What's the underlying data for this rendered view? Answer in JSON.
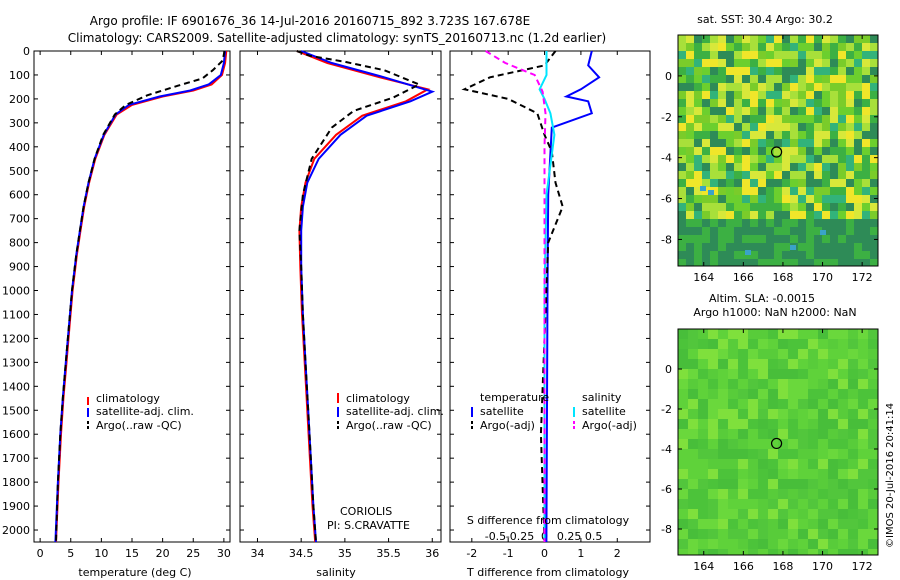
{
  "title_line1": "Argo profile: IF 6901676_36 14-Jul-2016 20160715_892 3.723S 167.678E",
  "title_line2": "Climatology: CARS2009. Satellite-adjusted climatology: synTS_20160713.nc (1.2d earlier)",
  "chart_data": [
    {
      "type": "line",
      "name": "temperature-profile",
      "xlabel": "temperature (deg C)",
      "xlim": [
        -1,
        31
      ],
      "xticks": [
        "0",
        "5",
        "10",
        "15",
        "20",
        "25",
        "30"
      ],
      "ylim": [
        0,
        2050
      ],
      "yticks": [
        "0",
        "100",
        "200",
        "300",
        "400",
        "500",
        "600",
        "700",
        "800",
        "900",
        "1000",
        "1100",
        "1200",
        "1300",
        "1400",
        "1500",
        "1600",
        "1700",
        "1800",
        "1900",
        "2000"
      ],
      "legend": [
        "climatology",
        "satellite-adj. clim.",
        "Argo(..raw -QC)"
      ],
      "series": [
        {
          "name": "climatology",
          "color": "#ff0000",
          "dash": "",
          "points": [
            [
              30.4,
              0
            ],
            [
              30.2,
              50
            ],
            [
              29.7,
              100
            ],
            [
              28.0,
              140
            ],
            [
              25.0,
              165
            ],
            [
              20.0,
              190
            ],
            [
              15.0,
              225
            ],
            [
              12.5,
              265
            ],
            [
              10.5,
              350
            ],
            [
              9.0,
              450
            ],
            [
              8.0,
              550
            ],
            [
              7.2,
              650
            ],
            [
              6.6,
              750
            ],
            [
              6.0,
              850
            ],
            [
              5.3,
              1000
            ],
            [
              4.8,
              1150
            ],
            [
              4.3,
              1300
            ],
            [
              3.8,
              1450
            ],
            [
              3.4,
              1600
            ],
            [
              3.0,
              1800
            ],
            [
              2.6,
              2050
            ]
          ]
        },
        {
          "name": "satellite-adj. clim.",
          "color": "#0000ff",
          "dash": "",
          "points": [
            [
              30.2,
              0
            ],
            [
              30.0,
              50
            ],
            [
              29.5,
              100
            ],
            [
              27.5,
              140
            ],
            [
              24.5,
              165
            ],
            [
              19.5,
              190
            ],
            [
              14.5,
              225
            ],
            [
              12.3,
              265
            ],
            [
              10.4,
              350
            ],
            [
              8.9,
              450
            ],
            [
              7.9,
              550
            ],
            [
              7.1,
              650
            ],
            [
              6.5,
              750
            ],
            [
              5.9,
              850
            ],
            [
              5.2,
              1000
            ],
            [
              4.7,
              1150
            ],
            [
              4.2,
              1300
            ],
            [
              3.7,
              1450
            ],
            [
              3.3,
              1600
            ],
            [
              2.9,
              1800
            ],
            [
              2.5,
              2050
            ]
          ]
        },
        {
          "name": "Argo(..raw -QC)",
          "color": "#000000",
          "dash": "6,4",
          "points": [
            [
              30.1,
              0
            ],
            [
              29.8,
              40
            ],
            [
              28.2,
              80
            ],
            [
              26.5,
              115
            ],
            [
              22.5,
              145
            ],
            [
              17.5,
              185
            ],
            [
              14.0,
              225
            ],
            [
              12.2,
              265
            ],
            [
              10.3,
              350
            ],
            [
              8.9,
              450
            ],
            [
              7.9,
              550
            ],
            [
              7.1,
              650
            ],
            [
              6.5,
              750
            ],
            [
              5.9,
              850
            ],
            [
              5.2,
              1000
            ],
            [
              4.7,
              1150
            ],
            [
              4.2,
              1300
            ],
            [
              3.7,
              1450
            ],
            [
              3.3,
              1600
            ],
            [
              2.9,
              1800
            ],
            [
              2.6,
              2050
            ]
          ]
        }
      ]
    },
    {
      "type": "line",
      "name": "salinity-profile",
      "xlabel": "salinity",
      "xlim": [
        33.8,
        36.1
      ],
      "xticks": [
        "34",
        "34.5",
        "35",
        "35.5",
        "36"
      ],
      "ylim": [
        0,
        2050
      ],
      "legend": [
        "climatology",
        "satellite-adj. clim.",
        "Argo(..raw -QC)"
      ],
      "annotation": [
        "CORIOLIS",
        "PI: S.CRAVATTE"
      ],
      "series": [
        {
          "name": "climatology",
          "color": "#ff0000",
          "dash": "",
          "points": [
            [
              34.45,
              0
            ],
            [
              34.8,
              50
            ],
            [
              35.4,
              110
            ],
            [
              35.95,
              160
            ],
            [
              35.7,
              210
            ],
            [
              35.2,
              270
            ],
            [
              34.9,
              350
            ],
            [
              34.65,
              450
            ],
            [
              34.55,
              550
            ],
            [
              34.5,
              650
            ],
            [
              34.48,
              750
            ],
            [
              34.49,
              900
            ],
            [
              34.51,
              1100
            ],
            [
              34.54,
              1300
            ],
            [
              34.57,
              1500
            ],
            [
              34.6,
              1700
            ],
            [
              34.63,
              1900
            ],
            [
              34.66,
              2050
            ]
          ]
        },
        {
          "name": "satellite-adj. clim.",
          "color": "#0000ff",
          "dash": "",
          "points": [
            [
              34.5,
              0
            ],
            [
              34.85,
              50
            ],
            [
              35.45,
              110
            ],
            [
              36.0,
              170
            ],
            [
              35.75,
              210
            ],
            [
              35.25,
              270
            ],
            [
              34.95,
              350
            ],
            [
              34.7,
              450
            ],
            [
              34.57,
              550
            ],
            [
              34.52,
              650
            ],
            [
              34.5,
              750
            ],
            [
              34.5,
              900
            ],
            [
              34.52,
              1100
            ],
            [
              34.55,
              1300
            ],
            [
              34.58,
              1500
            ],
            [
              34.61,
              1700
            ],
            [
              34.64,
              1900
            ],
            [
              34.67,
              2050
            ]
          ]
        },
        {
          "name": "Argo(..raw -QC)",
          "color": "#000000",
          "dash": "6,4",
          "points": [
            [
              34.45,
              0
            ],
            [
              34.6,
              20
            ],
            [
              35.0,
              45
            ],
            [
              35.45,
              80
            ],
            [
              35.85,
              140
            ],
            [
              35.55,
              195
            ],
            [
              35.1,
              250
            ],
            [
              34.85,
              320
            ],
            [
              34.62,
              450
            ],
            [
              34.52,
              600
            ],
            [
              34.48,
              750
            ],
            [
              34.5,
              900
            ],
            [
              34.52,
              1100
            ],
            [
              34.55,
              1300
            ],
            [
              34.58,
              1500
            ],
            [
              34.61,
              1700
            ],
            [
              34.64,
              1900
            ],
            [
              34.67,
              2050
            ]
          ]
        }
      ]
    },
    {
      "type": "line",
      "name": "difference-profile",
      "xlabel": "T difference from climatology",
      "xlabel_top": "S difference from climatology",
      "xlim": [
        -2.6,
        2.9
      ],
      "xticks": [
        "-2",
        "-1",
        "0",
        "1",
        "2"
      ],
      "xticks_top": [
        "-0.5",
        "-0.25",
        "0",
        "0.25",
        "0.5"
      ],
      "ylim": [
        0,
        2050
      ],
      "legend_temperature": {
        "heading": "temperature",
        "items": [
          "satellite",
          "Argo(-adj)"
        ]
      },
      "legend_salinity": {
        "heading": "salinity",
        "items": [
          "satellite",
          "Argo(-adj)"
        ]
      },
      "series": [
        {
          "name": "T satellite",
          "color": "#0000ff",
          "dash": "",
          "points": [
            [
              1.3,
              0
            ],
            [
              1.2,
              60
            ],
            [
              1.5,
              110
            ],
            [
              1.0,
              160
            ],
            [
              0.6,
              190
            ],
            [
              1.2,
              210
            ],
            [
              1.3,
              260
            ],
            [
              0.2,
              320
            ],
            [
              0.1,
              600
            ],
            [
              0.08,
              1000
            ],
            [
              0.05,
              2050
            ]
          ]
        },
        {
          "name": "T Argo(-adj)",
          "color": "#000000",
          "dash": "6,4",
          "points": [
            [
              0.3,
              0
            ],
            [
              0.0,
              60
            ],
            [
              -1.5,
              110
            ],
            [
              -2.2,
              160
            ],
            [
              -1.0,
              200
            ],
            [
              -0.2,
              260
            ],
            [
              0.0,
              350
            ],
            [
              0.2,
              420
            ],
            [
              0.3,
              550
            ],
            [
              0.5,
              650
            ],
            [
              0.1,
              800
            ],
            [
              0.0,
              1200
            ],
            [
              -0.1,
              1600
            ],
            [
              0.0,
              2050
            ]
          ]
        },
        {
          "name": "S satellite",
          "color": "#00e5ff",
          "dash": "",
          "points": [
            [
              0.02,
              0
            ],
            [
              0.02,
              100
            ],
            [
              -0.05,
              160
            ],
            [
              0.0,
              200
            ],
            [
              0.06,
              260
            ],
            [
              0.1,
              350
            ],
            [
              0.02,
              600
            ],
            [
              0.0,
              1000
            ],
            [
              0.0,
              2050
            ]
          ]
        },
        {
          "name": "S Argo(-adj)",
          "color": "#ff00ff",
          "dash": "6,4",
          "points": [
            [
              -0.6,
              0
            ],
            [
              -0.4,
              50
            ],
            [
              -0.1,
              100
            ],
            [
              -0.02,
              170
            ],
            [
              0.01,
              260
            ],
            [
              0.0,
              400
            ],
            [
              0.0,
              2050
            ]
          ]
        }
      ]
    },
    {
      "type": "heatmap",
      "name": "sst-map",
      "title": "sat. SST: 30.4 Argo: 30.2",
      "xticks": [
        "164",
        "166",
        "168",
        "170",
        "172"
      ],
      "yticks": [
        "0",
        "-2",
        "-4",
        "-6",
        "-8"
      ],
      "xlim": [
        162.7,
        172.8
      ],
      "ylim": [
        -9.3,
        2.0
      ],
      "marker": [
        167.678,
        -3.723
      ]
    },
    {
      "type": "heatmap",
      "name": "sla-map",
      "title_line1": "Altim. SLA: -0.0015",
      "title_line2": "Argo h1000: NaN h2000: NaN",
      "xticks": [
        "164",
        "166",
        "168",
        "170",
        "172"
      ],
      "yticks": [
        "0",
        "-2",
        "-4",
        "-6",
        "-8"
      ],
      "xlim": [
        162.7,
        172.8
      ],
      "ylim": [
        -9.3,
        2.0
      ],
      "marker": [
        167.678,
        -3.723
      ]
    }
  ],
  "watermark": "©IMOS 20-Jul-2016 20:41:14"
}
